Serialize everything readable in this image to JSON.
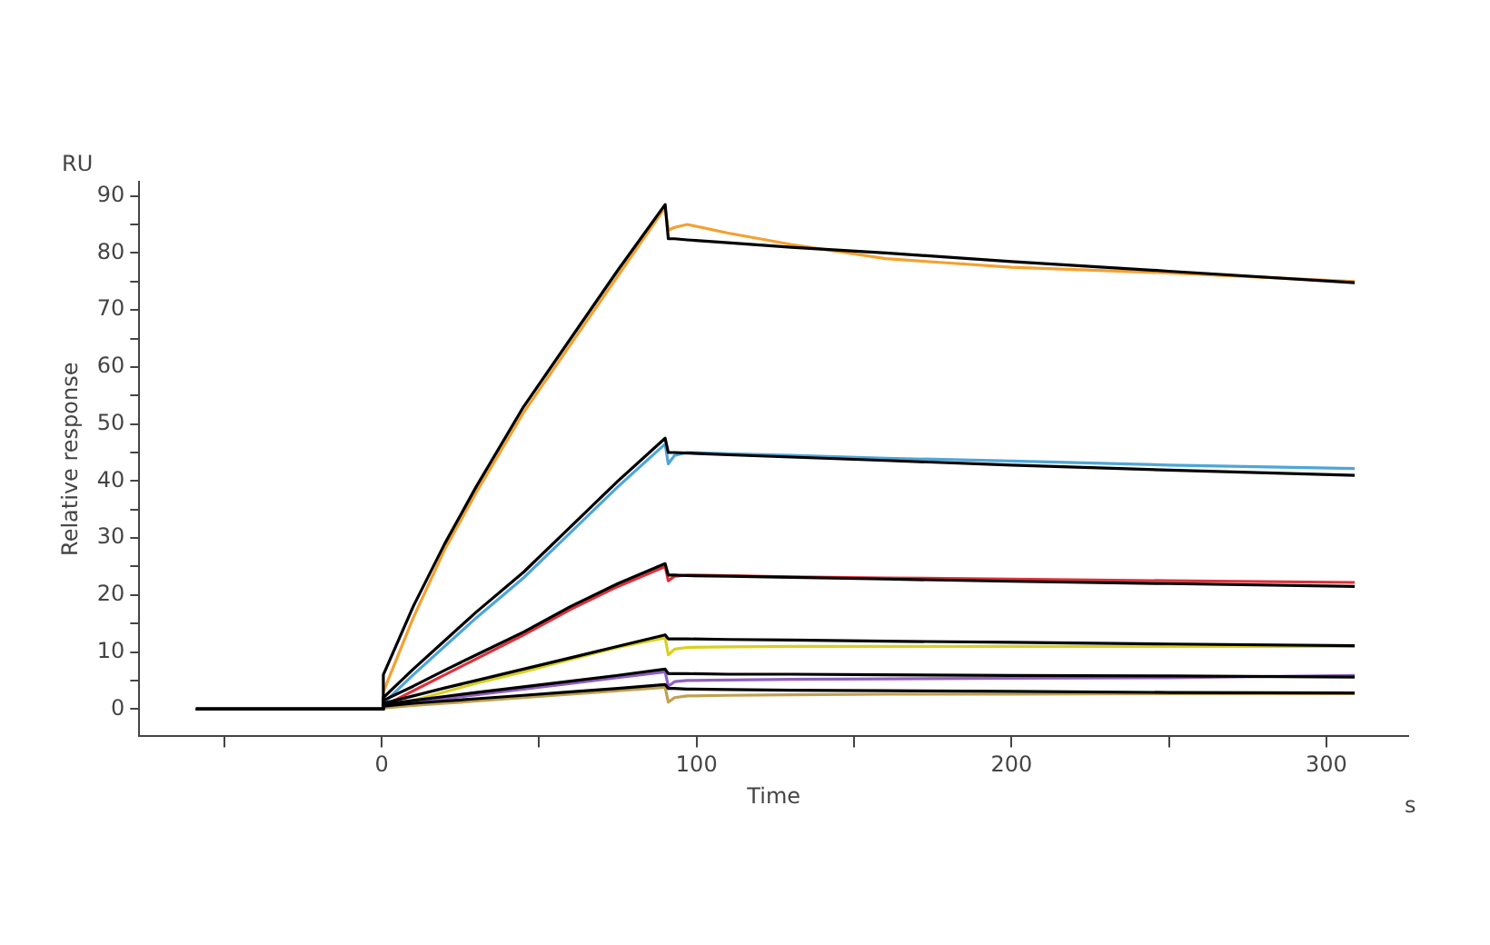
{
  "chart_data": {
    "type": "line",
    "xlabel": "Time",
    "ylabel": "Relative response",
    "annotations": [
      "RU",
      "s"
    ],
    "x": [
      -59,
      0,
      0.5,
      10,
      20,
      30,
      45,
      60,
      75,
      90,
      91,
      93,
      97,
      110,
      130,
      160,
      200,
      250,
      309
    ],
    "xlim": [
      -77,
      326
    ],
    "ylim": [
      -4.8,
      92.5
    ],
    "xticks": [
      {
        "value": -50,
        "label": null
      },
      0,
      {
        "value": 50,
        "label": null
      },
      100,
      {
        "value": 150,
        "label": null
      },
      200,
      {
        "value": 250,
        "label": null
      },
      300
    ],
    "yticks": [
      0,
      {
        "value": 5,
        "label": null
      },
      10,
      {
        "value": 15,
        "label": null
      },
      20,
      {
        "value": 25,
        "label": null
      },
      30,
      {
        "value": 35,
        "label": null
      },
      40,
      {
        "value": 45,
        "label": null
      },
      50,
      {
        "value": 55,
        "label": null
      },
      60,
      {
        "value": 65,
        "label": null
      },
      70,
      {
        "value": 75,
        "label": null
      },
      80,
      {
        "value": 85,
        "label": null
      },
      90
    ],
    "grid": false,
    "legend": false,
    "marker": "none",
    "line_style": "solid",
    "series": [
      {
        "color": "#f5a030",
        "values": [
          null,
          null,
          3,
          16,
          28,
          38,
          52,
          64,
          76,
          88,
          84,
          84.5,
          85,
          83.5,
          81.5,
          79,
          77.5,
          76.5,
          75
        ]
      },
      {
        "color": "#4da6d9",
        "values": [
          null,
          null,
          1,
          6,
          11,
          16,
          23,
          31,
          39,
          46.5,
          43,
          44.5,
          45,
          44.8,
          44.5,
          44,
          43.5,
          42.8,
          42.2
        ]
      },
      {
        "color": "#e0303a",
        "values": [
          null,
          null,
          0.5,
          3.2,
          6,
          8.8,
          13,
          17.5,
          21.5,
          25,
          22.5,
          23.3,
          23.5,
          23.4,
          23.2,
          23,
          22.8,
          22.5,
          22.2
        ]
      },
      {
        "color": "#d8d020",
        "values": [
          null,
          null,
          0.3,
          1.5,
          3,
          4.5,
          6.5,
          8.7,
          10.8,
          12.5,
          9.5,
          10.5,
          10.8,
          10.9,
          11,
          11,
          11,
          11,
          11
        ]
      },
      {
        "color": "#9060c0",
        "values": [
          null,
          null,
          0.3,
          1,
          1.8,
          2.5,
          3.5,
          4.5,
          5.5,
          6.5,
          4,
          4.8,
          5,
          5.1,
          5.2,
          5.3,
          5.4,
          5.5,
          5.9
        ]
      },
      {
        "color": "#c0a050",
        "values": [
          null,
          null,
          0.2,
          0.6,
          1,
          1.4,
          2,
          2.6,
          3.2,
          3.8,
          1.2,
          2,
          2.3,
          2.4,
          2.5,
          2.6,
          2.6,
          2.7,
          2.7
        ]
      },
      {
        "color": "#000000",
        "values": [
          0,
          0,
          6,
          18,
          29,
          39,
          53,
          65,
          77,
          88.5,
          82.5,
          82.5,
          82.3,
          81.8,
          81,
          80,
          78.5,
          76.8,
          74.8
        ]
      },
      {
        "color": "#000000",
        "values": [
          0,
          0,
          2,
          7,
          12,
          17,
          24,
          32,
          40,
          47.5,
          45,
          45,
          44.9,
          44.6,
          44.2,
          43.6,
          42.8,
          41.9,
          41
        ]
      },
      {
        "color": "#000000",
        "values": [
          0,
          0,
          1.5,
          4,
          6.8,
          9.5,
          13.5,
          18,
          22,
          25.5,
          23.5,
          23.5,
          23.4,
          23.3,
          23.1,
          22.8,
          22.4,
          22,
          21.5
        ]
      },
      {
        "color": "#000000",
        "values": [
          0,
          0,
          1,
          2.3,
          3.7,
          5,
          7,
          9,
          11,
          13,
          12.3,
          12.3,
          12.3,
          12.2,
          12.1,
          11.9,
          11.7,
          11.4,
          11.1
        ]
      },
      {
        "color": "#000000",
        "values": [
          0,
          0,
          0.8,
          1.5,
          2.2,
          2.9,
          3.9,
          4.9,
          5.9,
          7,
          6.2,
          6.2,
          6.2,
          6.1,
          6.1,
          6,
          5.9,
          5.8,
          5.6
        ]
      },
      {
        "color": "#000000",
        "values": [
          0,
          0,
          0.5,
          1,
          1.4,
          1.8,
          2.4,
          3,
          3.6,
          4.3,
          3.6,
          3.6,
          3.5,
          3.4,
          3.3,
          3.2,
          3.1,
          2.9,
          2.8
        ]
      }
    ]
  }
}
